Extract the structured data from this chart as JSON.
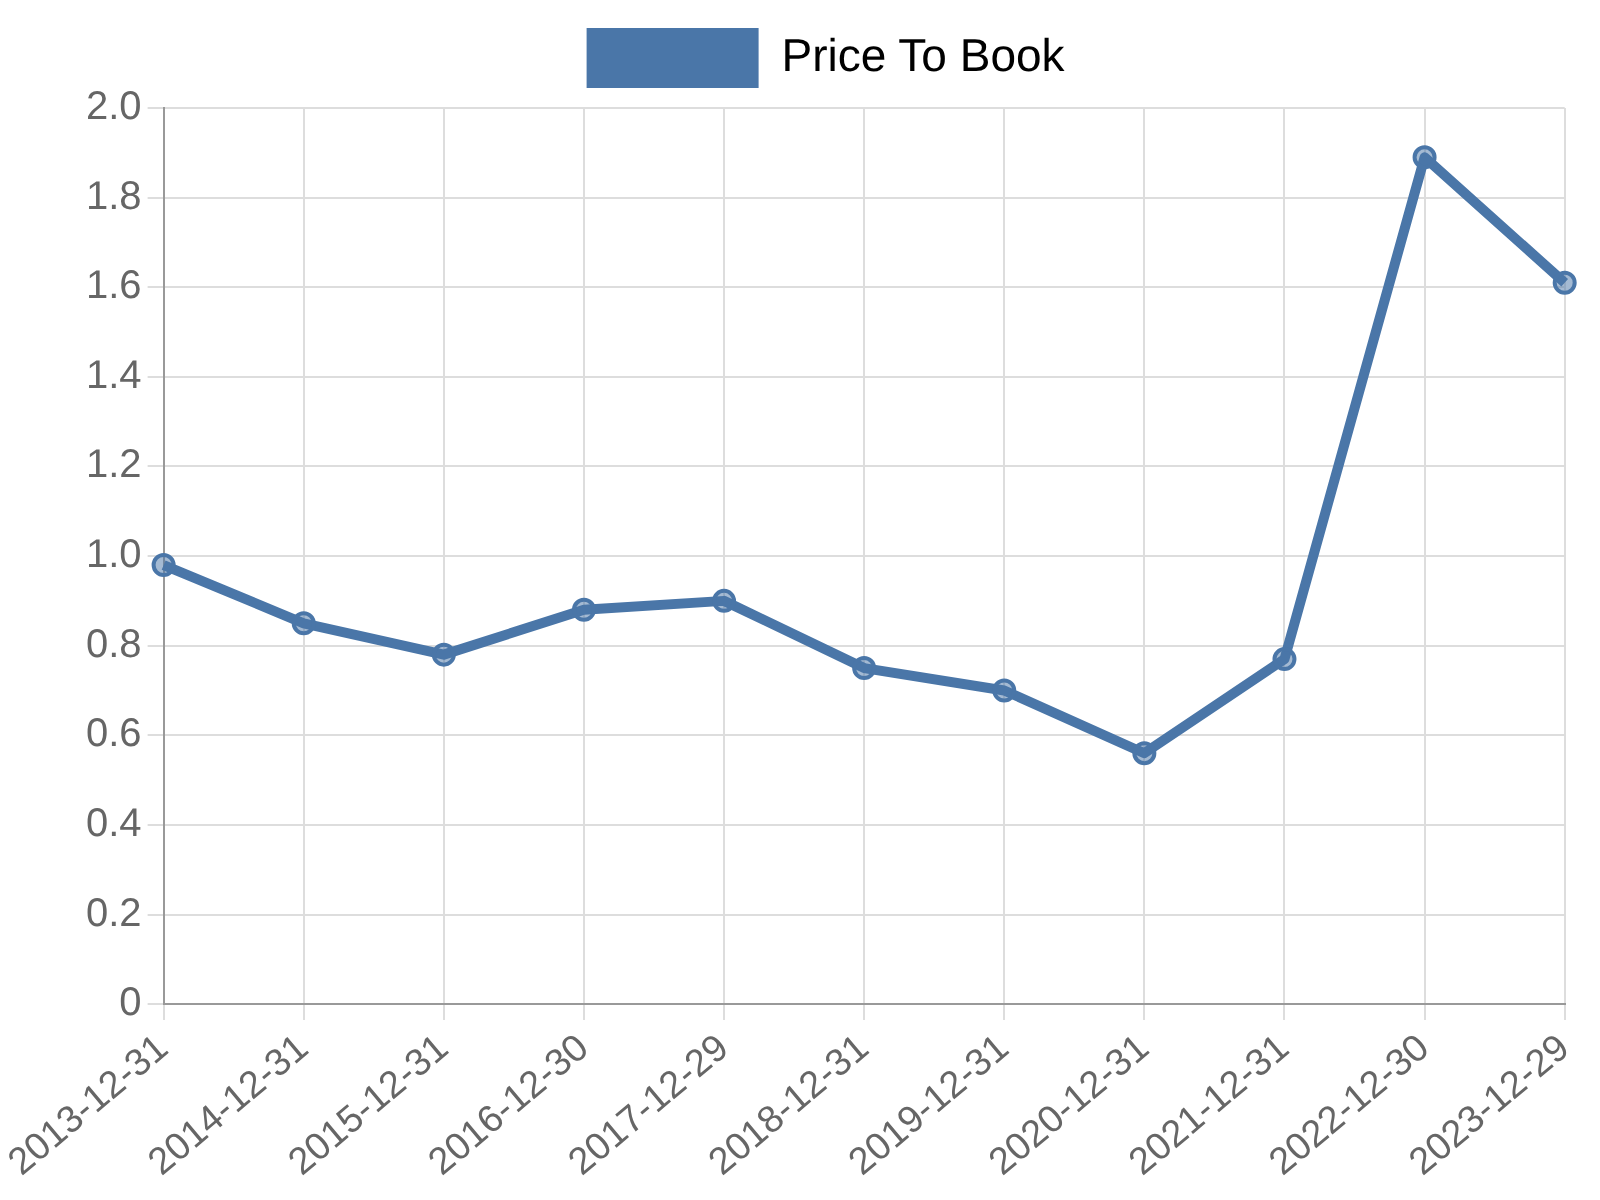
{
  "chart_data": {
    "type": "line",
    "categories": [
      "2013-12-31",
      "2014-12-31",
      "2015-12-31",
      "2016-12-30",
      "2017-12-29",
      "2018-12-31",
      "2019-12-31",
      "2020-12-31",
      "2021-12-31",
      "2022-12-30",
      "2023-12-29"
    ],
    "series": [
      {
        "name": "Price To Book",
        "color": "#4a76a8",
        "values": [
          0.98,
          0.85,
          0.78,
          0.88,
          0.9,
          0.75,
          0.7,
          0.56,
          0.77,
          1.89,
          1.61
        ]
      }
    ],
    "ylim": [
      0,
      2.0
    ],
    "yticks": [
      {
        "value": 0,
        "label": "0"
      },
      {
        "value": 0.2,
        "label": "0.2"
      },
      {
        "value": 0.4,
        "label": "0.4"
      },
      {
        "value": 0.6,
        "label": "0.6"
      },
      {
        "value": 0.8,
        "label": "0.8"
      },
      {
        "value": 1.0,
        "label": "1.0"
      },
      {
        "value": 1.2,
        "label": "1.2"
      },
      {
        "value": 1.4,
        "label": "1.4"
      },
      {
        "value": 1.6,
        "label": "1.6"
      },
      {
        "value": 1.8,
        "label": "1.8"
      },
      {
        "value": 2.0,
        "label": "2.0"
      }
    ],
    "grid": true,
    "legend": "top",
    "marker": "circle",
    "line_style": "solid"
  }
}
